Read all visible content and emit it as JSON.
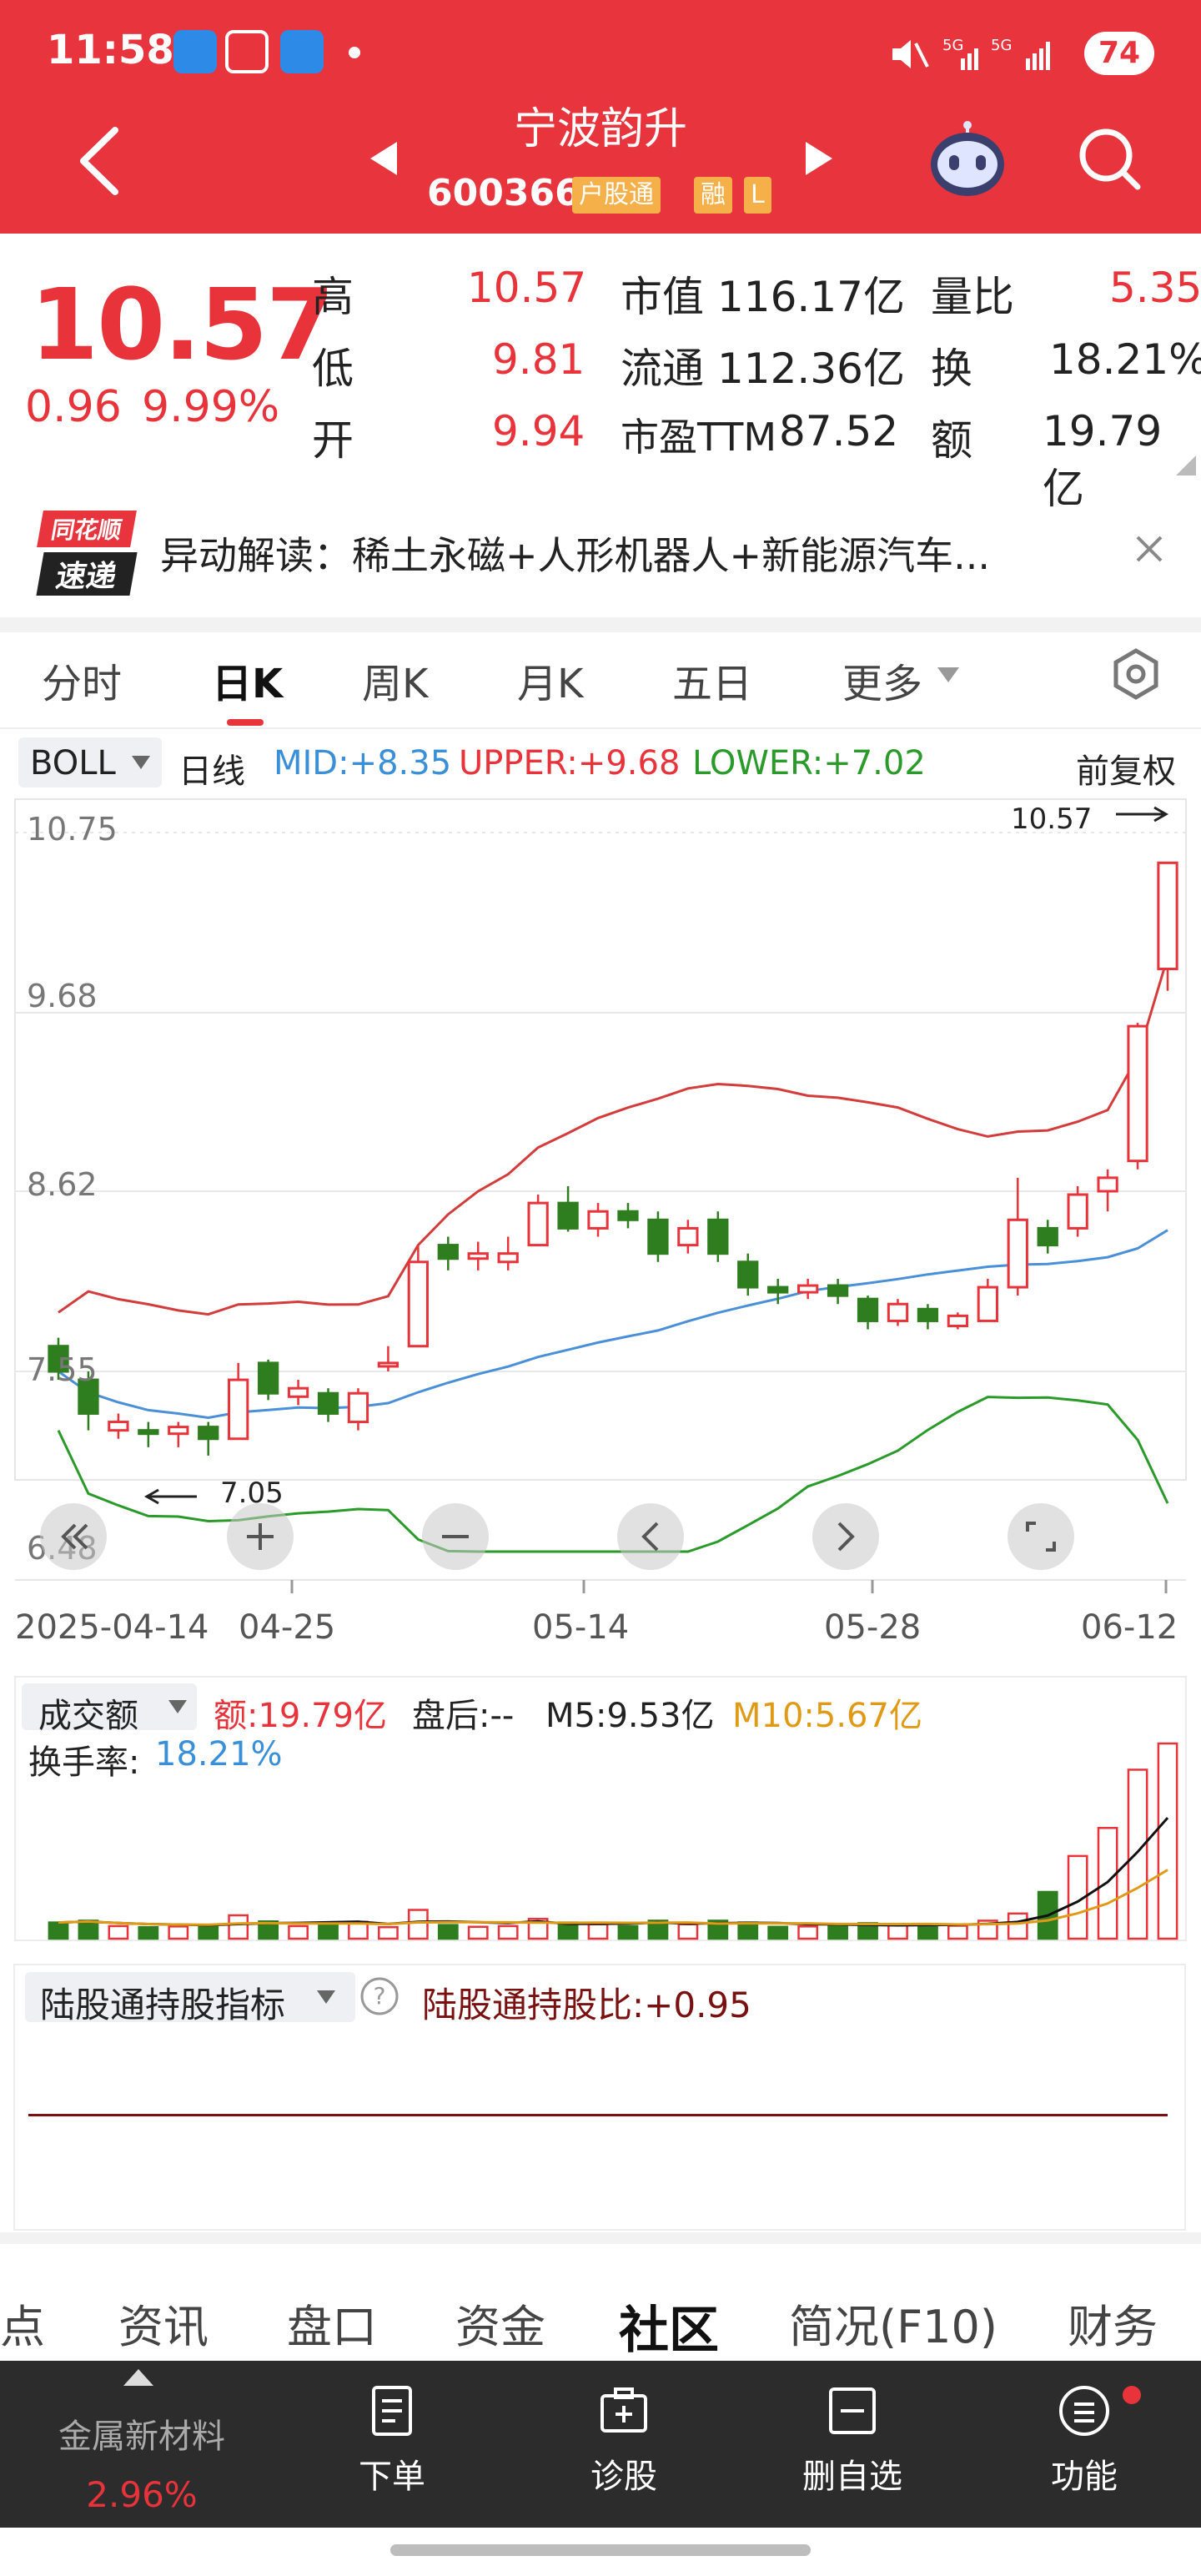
{
  "status": {
    "time": "11:58",
    "battery": "74"
  },
  "header": {
    "name": "宁波韵升",
    "code": "600366",
    "tags": [
      "户股通",
      "融",
      "L"
    ]
  },
  "quote": {
    "price": "10.57",
    "change": "0.96",
    "change_pct": "9.99%",
    "rows": [
      {
        "l1": "高",
        "v1": "10.57",
        "l2": "市值",
        "v2": "116.17亿",
        "l3": "量比",
        "v3": "5.35"
      },
      {
        "l1": "低",
        "v1": "9.81",
        "l2": "流通",
        "v2": "112.36亿",
        "l3": "换",
        "v3": "18.21%"
      },
      {
        "l1": "开",
        "v1": "9.94",
        "l2": "市盈TTM",
        "v2": "87.52",
        "l3": "额",
        "v3": "19.79亿"
      }
    ]
  },
  "news": {
    "logo_line1": "同花顺",
    "logo_line2": "速递",
    "text": "异动解读：稀土永磁+人形机器人+新能源汽车..."
  },
  "ktabs": [
    "分时",
    "日K",
    "周K",
    "月K",
    "五日",
    "更多"
  ],
  "ktabs_active": "日K",
  "indicator": {
    "name": "BOLL",
    "period": "日线",
    "mid": "MID:+8.35",
    "upper": "UPPER:+9.68",
    "lower": "LOWER:+7.02",
    "adjust": "前复权"
  },
  "chart_data": {
    "type": "candlestick",
    "y_ticks": [
      "10.75",
      "9.68",
      "8.62",
      "7.55",
      "6.48"
    ],
    "x_ticks": [
      "2025-04-14",
      "04-25",
      "05-14",
      "05-28",
      "06-12"
    ],
    "ylim": [
      6.48,
      10.75
    ],
    "high_label": "10.57",
    "low_label": "7.05",
    "colors": {
      "up": "#e8333b",
      "down": "#2e7d1e",
      "mid": "#4a90d9",
      "upper": "#d43c3c",
      "lower": "#2a9a2a"
    },
    "candles": [
      {
        "o": 7.7,
        "c": 7.55,
        "h": 7.75,
        "l": 7.5
      },
      {
        "o": 7.5,
        "c": 7.3,
        "h": 7.55,
        "l": 7.2
      },
      {
        "o": 7.2,
        "c": 7.25,
        "h": 7.3,
        "l": 7.15
      },
      {
        "o": 7.2,
        "c": 7.18,
        "h": 7.25,
        "l": 7.1
      },
      {
        "o": 7.18,
        "c": 7.22,
        "h": 7.25,
        "l": 7.1
      },
      {
        "o": 7.22,
        "c": 7.15,
        "h": 7.25,
        "l": 7.05
      },
      {
        "o": 7.15,
        "c": 7.5,
        "h": 7.6,
        "l": 7.15
      },
      {
        "o": 7.6,
        "c": 7.42,
        "h": 7.62,
        "l": 7.38
      },
      {
        "o": 7.4,
        "c": 7.45,
        "h": 7.5,
        "l": 7.35
      },
      {
        "o": 7.42,
        "c": 7.3,
        "h": 7.45,
        "l": 7.25
      },
      {
        "o": 7.25,
        "c": 7.42,
        "h": 7.45,
        "l": 7.2
      },
      {
        "o": 7.58,
        "c": 7.6,
        "h": 7.7,
        "l": 7.55
      },
      {
        "o": 7.7,
        "c": 8.2,
        "h": 8.3,
        "l": 7.7
      },
      {
        "o": 8.3,
        "c": 8.22,
        "h": 8.35,
        "l": 8.15
      },
      {
        "o": 8.22,
        "c": 8.25,
        "h": 8.32,
        "l": 8.15
      },
      {
        "o": 8.2,
        "c": 8.25,
        "h": 8.35,
        "l": 8.15
      },
      {
        "o": 8.3,
        "c": 8.55,
        "h": 8.6,
        "l": 8.3
      },
      {
        "o": 8.55,
        "c": 8.4,
        "h": 8.65,
        "l": 8.38
      },
      {
        "o": 8.4,
        "c": 8.5,
        "h": 8.55,
        "l": 8.35
      },
      {
        "o": 8.5,
        "c": 8.45,
        "h": 8.55,
        "l": 8.4
      },
      {
        "o": 8.45,
        "c": 8.25,
        "h": 8.5,
        "l": 8.2
      },
      {
        "o": 8.3,
        "c": 8.4,
        "h": 8.45,
        "l": 8.25
      },
      {
        "o": 8.45,
        "c": 8.25,
        "h": 8.5,
        "l": 8.2
      },
      {
        "o": 8.2,
        "c": 8.05,
        "h": 8.25,
        "l": 8.0
      },
      {
        "o": 8.05,
        "c": 8.02,
        "h": 8.1,
        "l": 7.95
      },
      {
        "o": 8.02,
        "c": 8.06,
        "h": 8.1,
        "l": 7.98
      },
      {
        "o": 8.06,
        "c": 8.0,
        "h": 8.1,
        "l": 7.95
      },
      {
        "o": 7.98,
        "c": 7.85,
        "h": 8.0,
        "l": 7.8
      },
      {
        "o": 7.85,
        "c": 7.95,
        "h": 7.98,
        "l": 7.82
      },
      {
        "o": 7.92,
        "c": 7.85,
        "h": 7.95,
        "l": 7.8
      },
      {
        "o": 7.82,
        "c": 7.88,
        "h": 7.9,
        "l": 7.8
      },
      {
        "o": 7.85,
        "c": 8.05,
        "h": 8.1,
        "l": 7.85
      },
      {
        "o": 8.05,
        "c": 8.45,
        "h": 8.7,
        "l": 8.0
      },
      {
        "o": 8.4,
        "c": 8.3,
        "h": 8.45,
        "l": 8.25
      },
      {
        "o": 8.4,
        "c": 8.6,
        "h": 8.65,
        "l": 8.35
      },
      {
        "o": 8.62,
        "c": 8.7,
        "h": 8.75,
        "l": 8.5
      },
      {
        "o": 8.8,
        "c": 9.6,
        "h": 9.62,
        "l": 8.75
      },
      {
        "o": 9.94,
        "c": 10.57,
        "h": 10.57,
        "l": 9.81
      }
    ],
    "volume": {
      "amount": "额:19.79亿",
      "after_hours": "盘后:--",
      "m5": "M5:9.53亿",
      "m10": "M10:5.67亿",
      "turnover_label": "换手率:",
      "turnover": "18.21%"
    }
  },
  "chart_controls": [
    "fast-rewind",
    "zoom-in",
    "zoom-out",
    "prev",
    "next",
    "fullscreen"
  ],
  "sub_indicator": {
    "name": "陆股通持股指标",
    "value": "陆股通持股比:+0.95"
  },
  "bottom_tabs": [
    "点",
    "资讯",
    "盘口",
    "资金",
    "社区",
    "简况(F10)",
    "财务"
  ],
  "bottom_tabs_active": "社区",
  "nav": {
    "sector_name": "金属新材料",
    "sector_change": "2.96%",
    "items": [
      "下单",
      "诊股",
      "删自选",
      "功能"
    ]
  }
}
